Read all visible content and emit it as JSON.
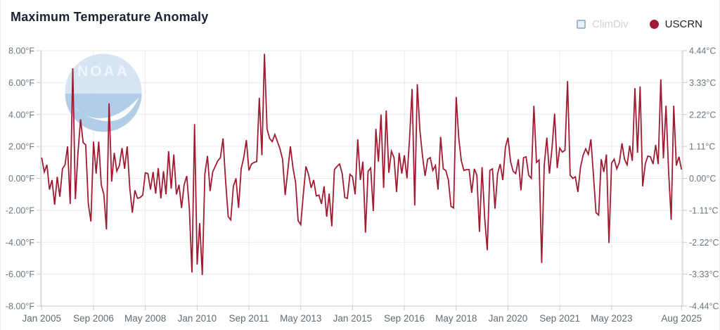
{
  "header": {
    "title": "Maximum Temperature Anomaly"
  },
  "legend": [
    {
      "label": "ClimDiv",
      "marker": "square",
      "marker_fill": "#e9f0f7",
      "marker_border": "#9db8cf",
      "label_color": "#ced3d8",
      "active": false
    },
    {
      "label": "USCRN",
      "marker": "circle",
      "marker_fill": "#9e1b32",
      "marker_border": "#8a1427",
      "label_color": "#1c2026",
      "active": true
    }
  ],
  "watermark": {
    "text": "NOAA",
    "circle_fill": "#d5e4f2",
    "lower_fill": "#aecbe6",
    "text_color": "#eef5fb"
  },
  "colors": {
    "line": "#a01b30",
    "grid": "#e9eaeb",
    "axis": "#c3c9ce",
    "tick_label": "#6b7680",
    "x_label": "#5f6b75"
  },
  "chart_data": {
    "type": "line",
    "title": "Maximum Temperature Anomaly",
    "xlabel": "",
    "ylabel_left": "°F",
    "ylabel_right": "°C",
    "ylim_f": [
      -8,
      8
    ],
    "grid": true,
    "legend_position": "top-right",
    "x_start": "Jan 2005",
    "x_end": "Aug 2025",
    "frequency": "monthly",
    "x_ticks": [
      {
        "label": "Jan 2005",
        "i": 0
      },
      {
        "label": "Sep 2006",
        "i": 20
      },
      {
        "label": "May 2008",
        "i": 40
      },
      {
        "label": "Jan 2010",
        "i": 60
      },
      {
        "label": "Sep 2011",
        "i": 80
      },
      {
        "label": "May 2013",
        "i": 100
      },
      {
        "label": "Jan 2015",
        "i": 120
      },
      {
        "label": "Sep 2016",
        "i": 140
      },
      {
        "label": "May 2018",
        "i": 160
      },
      {
        "label": "Jan 2020",
        "i": 180
      },
      {
        "label": "Sep 2021",
        "i": 200
      },
      {
        "label": "May 2023",
        "i": 220
      },
      {
        "label": "Aug 2025",
        "i": 247
      }
    ],
    "y_left": {
      "labels": [
        "8.00°F",
        "6.00°F",
        "4.00°F",
        "2.00°F",
        "0.00°F",
        "-2.00°F",
        "-4.00°F",
        "-6.00°F",
        "-8.00°F"
      ],
      "values": [
        8,
        6,
        4,
        2,
        0,
        -2,
        -4,
        -6,
        -8
      ]
    },
    "y_right": {
      "labels": [
        "4.44°C",
        "3.33°C",
        "2.22°C",
        "1.11°C",
        "0.00°C",
        "-1.11°C",
        "-2.22°C",
        "-3.33°C",
        "-4.44°C"
      ]
    },
    "series": [
      {
        "name": "USCRN",
        "color": "#a01b30",
        "unit": "°F",
        "start": "Jan 2005",
        "values_by_year": {
          "2005": [
            1.3,
            0.4,
            0.85,
            -0.7,
            -0.1,
            -1.65,
            0.1,
            -1.15,
            0.6,
            0.85,
            2.0,
            -1.6
          ],
          "2006": [
            6.9,
            -1.3,
            1.6,
            3.7,
            2.25,
            2.1,
            -1.6,
            -2.7,
            2.3,
            0.3,
            2.3,
            -0.4
          ],
          "2007": [
            -1.0,
            -3.2,
            4.7,
            -0.2,
            1.6,
            0.45,
            0.8,
            1.9,
            0.6,
            2.0,
            -0.6,
            -2.15
          ],
          "2008": [
            -0.75,
            -1.25,
            -1.2,
            -1.05,
            0.35,
            0.3,
            -0.7,
            0.4,
            -0.95,
            0.65,
            -1.25,
            0.45
          ],
          "2009": [
            -1.0,
            1.7,
            -0.65,
            1.5,
            -1.0,
            -0.4,
            -1.85,
            -0.4,
            0.15,
            -1.9,
            -5.9,
            3.4
          ],
          "2010": [
            -5.4,
            -2.8,
            -6.05,
            0.3,
            1.4,
            -0.8,
            0.4,
            0.75,
            1.1,
            1.3,
            2.5,
            -0.2
          ],
          "2011": [
            -2.4,
            -2.6,
            -0.5,
            0.0,
            -1.85,
            0.6,
            1.3,
            2.4,
            0.5,
            0.9,
            1.0,
            1.05
          ],
          "2012": [
            5.05,
            1.45,
            7.8,
            3.1,
            2.5,
            2.3,
            2.75,
            2.3,
            1.85,
            1.2,
            -1.05,
            0.5
          ],
          "2013": [
            2.0,
            0.65,
            -0.25,
            -2.65,
            -2.9,
            -1.0,
            0.75,
            0.25,
            -0.6,
            -0.1,
            -1.1,
            -1.05
          ],
          "2014": [
            -1.6,
            -0.5,
            -2.4,
            -0.95,
            -3.0,
            0.55,
            0.75,
            0.9,
            0.3,
            -1.2,
            -1.25,
            0.25
          ],
          "2015": [
            0.1,
            -1.0,
            2.45,
            -0.1,
            1.05,
            -3.4,
            0.45,
            0.65,
            -2.05,
            3.1,
            1.05,
            4.0
          ],
          "2016": [
            -0.6,
            4.25,
            0.35,
            1.7,
            1.3,
            -0.85,
            1.6,
            0.3,
            1.45,
            0.0,
            2.5,
            5.6
          ],
          "2017": [
            -1.7,
            5.9,
            3.0,
            1.4,
            0.15,
            1.2,
            1.3,
            0.5,
            0.8,
            -0.7,
            2.6,
            0.6
          ],
          "2018": [
            0.5,
            -0.1,
            -1.75,
            -1.85,
            5.1,
            2.5,
            1.1,
            0.5,
            0.55,
            0.55,
            -0.9,
            0.6
          ],
          "2019": [
            0.2,
            -3.35,
            0.7,
            -2.45,
            -4.5,
            0.5,
            0.6,
            -1.9,
            0.3,
            0.9,
            -0.1,
            1.95
          ],
          "2020": [
            2.55,
            1.05,
            0.45,
            0.3,
            1.2,
            -0.75,
            1.3,
            1.35,
            0.2,
            0.0,
            4.55,
            1.0
          ],
          "2021": [
            1.15,
            -5.3,
            0.8,
            2.55,
            0.3,
            1.9,
            4.05,
            0.65,
            1.9,
            1.65,
            1.75,
            6.1
          ],
          "2022": [
            0.2,
            0.0,
            0.1,
            -0.85,
            0.7,
            1.45,
            1.85,
            1.5,
            2.45,
            0.2,
            -2.15,
            -2.3
          ],
          "2023": [
            1.2,
            0.4,
            1.5,
            -4.05,
            0.95,
            1.2,
            0.6,
            1.0,
            2.2,
            1.2,
            0.85,
            2.05
          ],
          "2024": [
            1.1,
            5.65,
            1.6,
            5.75,
            -0.5,
            0.9,
            1.4,
            1.35,
            0.9,
            2.1,
            0.9,
            6.2
          ],
          "2025": [
            1.25,
            4.55,
            0.45,
            -2.6,
            4.55,
            0.8,
            1.35,
            0.55
          ]
        }
      }
    ]
  }
}
